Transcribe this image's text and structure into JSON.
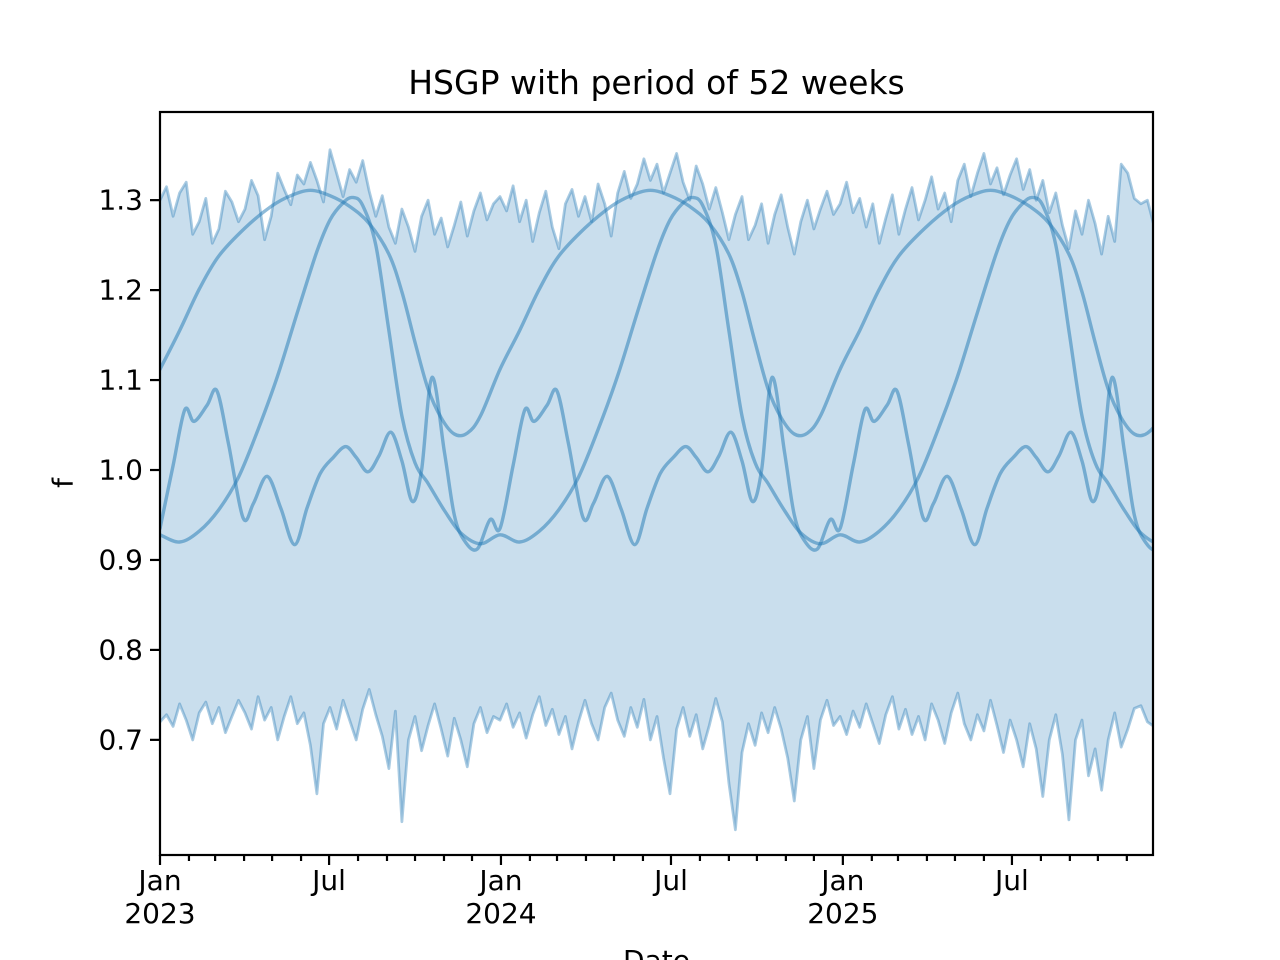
{
  "title": "HSGP with period of 52 weeks",
  "axes": {
    "xlabel": "Date",
    "ylabel": "f"
  },
  "chart_data": {
    "type": "line",
    "title": "HSGP with period of 52 weeks",
    "xlabel": "Date",
    "ylabel": "f",
    "legend": "none",
    "grid": false,
    "x_axis": {
      "range_days": [
        0,
        1063
      ],
      "major_ticks": [
        {
          "day": 0,
          "label": "Jan",
          "year": "2023"
        },
        {
          "day": 181,
          "label": "Jul",
          "year": ""
        },
        {
          "day": 365,
          "label": "Jan",
          "year": "2024"
        },
        {
          "day": 547,
          "label": "Jul",
          "year": ""
        },
        {
          "day": 731,
          "label": "Jan",
          "year": "2025"
        },
        {
          "day": 912,
          "label": "Jul",
          "year": ""
        }
      ],
      "minor_tick_days": [
        31,
        59,
        90,
        120,
        151,
        212,
        243,
        273,
        304,
        334,
        396,
        425,
        456,
        486,
        517,
        578,
        609,
        639,
        670,
        700,
        762,
        790,
        821,
        851,
        882,
        943,
        974,
        1004,
        1035
      ]
    },
    "y_axis": {
      "lim": [
        0.572,
        1.398
      ],
      "ticks": [
        {
          "value": 0.7,
          "label": "0.7"
        },
        {
          "value": 0.8,
          "label": "0.8"
        },
        {
          "value": 0.9,
          "label": "0.9"
        },
        {
          "value": 1.0,
          "label": "1.0"
        },
        {
          "value": 1.1,
          "label": "1.1"
        },
        {
          "value": 1.2,
          "label": "1.2"
        },
        {
          "value": 1.3,
          "label": "1.3"
        }
      ]
    },
    "colors": {
      "base": "#1f77b4",
      "band_fill": "rgba(31,119,180,0.24)",
      "band_edge": "rgba(31,119,180,0.38)",
      "curve": "rgba(31,119,180,0.5)"
    },
    "band": {
      "name": "hdi-band-weekly",
      "step_days": 7,
      "upper": [
        1.3,
        1.315,
        1.282,
        1.308,
        1.32,
        1.262,
        1.276,
        1.302,
        1.252,
        1.268,
        1.31,
        1.298,
        1.276,
        1.29,
        1.322,
        1.305,
        1.256,
        1.282,
        1.33,
        1.312,
        1.295,
        1.328,
        1.318,
        1.342,
        1.322,
        1.298,
        1.356,
        1.33,
        1.304,
        1.334,
        1.32,
        1.344,
        1.31,
        1.282,
        1.305,
        1.27,
        1.252,
        1.29,
        1.27,
        1.243,
        1.282,
        1.3,
        1.262,
        1.28,
        1.248,
        1.272,
        1.298,
        1.26,
        1.288,
        1.308,
        1.278,
        1.296,
        1.304,
        1.288,
        1.316,
        1.276,
        1.3,
        1.254,
        1.286,
        1.31,
        1.27,
        1.246,
        1.296,
        1.312,
        1.282,
        1.304,
        1.276,
        1.318,
        1.296,
        1.26,
        1.308,
        1.332,
        1.302,
        1.318,
        1.346,
        1.322,
        1.34,
        1.308,
        1.33,
        1.352,
        1.32,
        1.3,
        1.338,
        1.318,
        1.29,
        1.314,
        1.286,
        1.256,
        1.284,
        1.304,
        1.256,
        1.272,
        1.296,
        1.252,
        1.284,
        1.306,
        1.27,
        1.24,
        1.276,
        1.3,
        1.268,
        1.29,
        1.31,
        1.284,
        1.296,
        1.32,
        1.286,
        1.302,
        1.27,
        1.296,
        1.252,
        1.28,
        1.306,
        1.262,
        1.29,
        1.314,
        1.278,
        1.3,
        1.326,
        1.29,
        1.308,
        1.276,
        1.322,
        1.34,
        1.304,
        1.33,
        1.352,
        1.318,
        1.336,
        1.306,
        1.328,
        1.346,
        1.312,
        1.334,
        1.3,
        1.322,
        1.286,
        1.308,
        1.272,
        1.246,
        1.288,
        1.262,
        1.3,
        1.274,
        1.24,
        1.282,
        1.254,
        1.34,
        1.33,
        1.302,
        1.296,
        1.3,
        1.272
      ],
      "lower": [
        0.72,
        0.728,
        0.715,
        0.74,
        0.722,
        0.7,
        0.73,
        0.742,
        0.718,
        0.736,
        0.708,
        0.726,
        0.744,
        0.73,
        0.712,
        0.748,
        0.722,
        0.736,
        0.7,
        0.726,
        0.748,
        0.718,
        0.73,
        0.694,
        0.64,
        0.718,
        0.736,
        0.712,
        0.744,
        0.722,
        0.7,
        0.734,
        0.756,
        0.728,
        0.704,
        0.668,
        0.732,
        0.609,
        0.7,
        0.726,
        0.688,
        0.716,
        0.74,
        0.712,
        0.682,
        0.724,
        0.7,
        0.67,
        0.718,
        0.736,
        0.708,
        0.726,
        0.722,
        0.74,
        0.714,
        0.73,
        0.702,
        0.728,
        0.748,
        0.716,
        0.734,
        0.706,
        0.726,
        0.69,
        0.72,
        0.744,
        0.718,
        0.7,
        0.736,
        0.752,
        0.722,
        0.704,
        0.736,
        0.714,
        0.745,
        0.7,
        0.726,
        0.68,
        0.64,
        0.712,
        0.736,
        0.704,
        0.728,
        0.69,
        0.716,
        0.746,
        0.72,
        0.652,
        0.6,
        0.686,
        0.718,
        0.694,
        0.73,
        0.708,
        0.736,
        0.712,
        0.68,
        0.632,
        0.7,
        0.726,
        0.668,
        0.722,
        0.744,
        0.716,
        0.726,
        0.706,
        0.732,
        0.714,
        0.74,
        0.718,
        0.696,
        0.728,
        0.748,
        0.712,
        0.734,
        0.706,
        0.726,
        0.7,
        0.74,
        0.722,
        0.696,
        0.73,
        0.752,
        0.718,
        0.7,
        0.728,
        0.71,
        0.744,
        0.716,
        0.686,
        0.722,
        0.7,
        0.67,
        0.718,
        0.69,
        0.637,
        0.7,
        0.728,
        0.684,
        0.611,
        0.7,
        0.722,
        0.66,
        0.69,
        0.644,
        0.7,
        0.73,
        0.692,
        0.712,
        0.735,
        0.738,
        0.72,
        0.715
      ]
    },
    "series": [
      {
        "name": "gp-sample-broad-summer-peak",
        "period_weeks": 52,
        "repeats": 3,
        "keyframes": [
          [
            0,
            1.112
          ],
          [
            3,
            1.155
          ],
          [
            6,
            1.201
          ],
          [
            9,
            1.238
          ],
          [
            13,
            1.269
          ],
          [
            17,
            1.293
          ],
          [
            20,
            1.305
          ],
          [
            23,
            1.311
          ],
          [
            26,
            1.305
          ],
          [
            29,
            1.293
          ],
          [
            32,
            1.274
          ],
          [
            35,
            1.24
          ],
          [
            37,
            1.198
          ],
          [
            39,
            1.142
          ],
          [
            41,
            1.09
          ],
          [
            43,
            1.058
          ],
          [
            45,
            1.04
          ],
          [
            47,
            1.041
          ],
          [
            49,
            1.06
          ],
          [
            52,
            1.112
          ]
        ]
      },
      {
        "name": "gp-sample-steep-late-peak",
        "period_weeks": 52,
        "repeats": 3,
        "keyframes": [
          [
            0,
            0.928
          ],
          [
            3,
            0.92
          ],
          [
            6,
            0.932
          ],
          [
            9,
            0.956
          ],
          [
            12,
            0.992
          ],
          [
            15,
            1.045
          ],
          [
            18,
            1.105
          ],
          [
            21,
            1.175
          ],
          [
            24,
            1.243
          ],
          [
            26,
            1.278
          ],
          [
            28,
            1.297
          ],
          [
            29.5,
            1.303
          ],
          [
            31,
            1.294
          ],
          [
            33,
            1.25
          ],
          [
            35,
            1.155
          ],
          [
            37,
            1.06
          ],
          [
            39,
            1.008
          ],
          [
            41,
            0.985
          ],
          [
            43.5,
            0.955
          ],
          [
            46,
            0.93
          ],
          [
            49,
            0.918
          ],
          [
            52,
            0.928
          ]
        ]
      },
      {
        "name": "gp-sample-wiggly",
        "period_weeks": 52,
        "repeats": 3,
        "keyframes": [
          [
            0,
            0.935
          ],
          [
            2,
            1.005
          ],
          [
            3.8,
            1.067
          ],
          [
            5.2,
            1.054
          ],
          [
            7.2,
            1.072
          ],
          [
            8.7,
            1.088
          ],
          [
            10.5,
            1.028
          ],
          [
            12.7,
            0.947
          ],
          [
            14.3,
            0.963
          ],
          [
            16.4,
            0.993
          ],
          [
            18.5,
            0.957
          ],
          [
            20.6,
            0.917
          ],
          [
            22.5,
            0.958
          ],
          [
            24.5,
            0.996
          ],
          [
            26.5,
            1.014
          ],
          [
            28.4,
            1.026
          ],
          [
            30,
            1.014
          ],
          [
            31.8,
            0.998
          ],
          [
            33.5,
            1.016
          ],
          [
            35.3,
            1.042
          ],
          [
            37,
            1.01
          ],
          [
            38.6,
            0.965
          ],
          [
            40,
            1.0
          ],
          [
            41.6,
            1.103
          ],
          [
            43.5,
            1.02
          ],
          [
            45,
            0.95
          ],
          [
            46.5,
            0.922
          ],
          [
            48.5,
            0.912
          ],
          [
            50.5,
            0.945
          ],
          [
            52,
            0.935
          ]
        ]
      }
    ]
  }
}
